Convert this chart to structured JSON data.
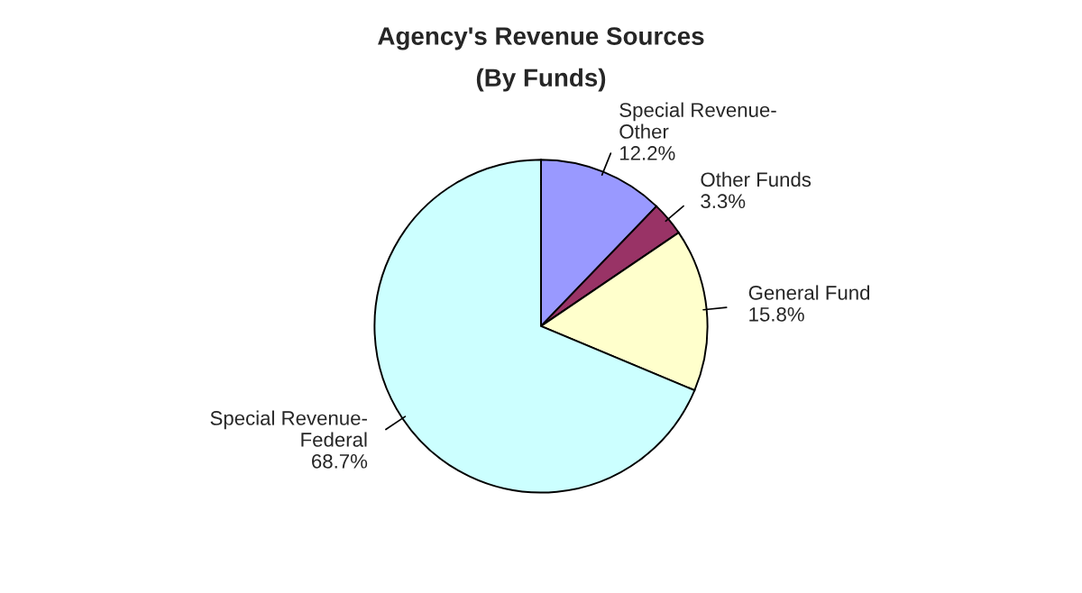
{
  "chart_data": {
    "type": "pie",
    "title": "Agency's Revenue Sources",
    "subtitle": "(By Funds)",
    "categories": [
      "Special Revenue-Other",
      "Other Funds",
      "General Fund",
      "Special Revenue-Federal"
    ],
    "values": [
      12.2,
      3.3,
      15.8,
      68.7
    ],
    "value_labels": [
      "12.2%",
      "3.3%",
      "15.8%",
      "68.7%"
    ],
    "colors": [
      "#9999ff",
      "#993366",
      "#ffffcc",
      "#ccffff"
    ],
    "legend": false
  }
}
